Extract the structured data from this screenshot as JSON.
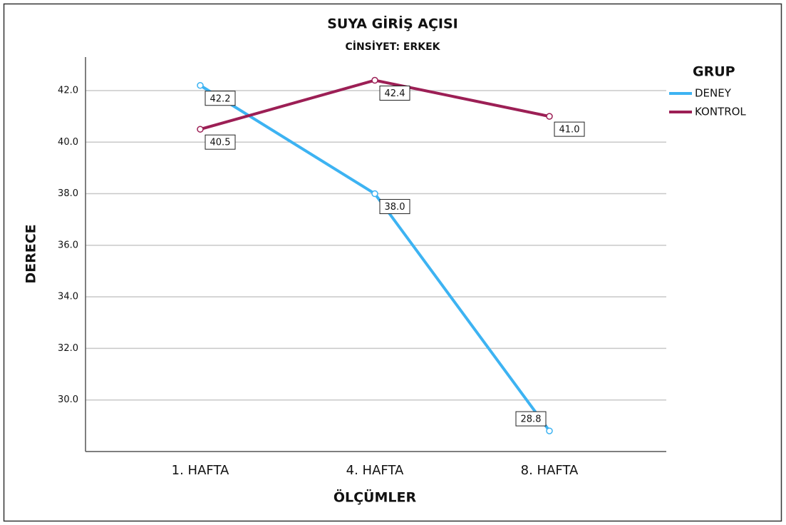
{
  "chart_data": {
    "type": "line",
    "title": "SUYA GİRİŞ AÇISI",
    "subtitle": "CİNSİYET: ERKEK",
    "x_label": "ÖLÇÜMLER",
    "y_label": "DERECE",
    "categories": [
      "1. HAFTA",
      "4. HAFTA",
      "8. HAFTA"
    ],
    "series": [
      {
        "name": "DENEY",
        "color": "#3db3f2",
        "values": [
          42.2,
          38.0,
          28.8
        ],
        "value_labels": [
          "42.2",
          "38.0",
          "28.8"
        ]
      },
      {
        "name": "KONTROL",
        "color": "#9c1f55",
        "values": [
          40.5,
          42.4,
          41.0
        ],
        "value_labels": [
          "40.5",
          "42.4",
          "41.0"
        ]
      }
    ],
    "ylim": [
      28.0,
      43.3
    ],
    "yticks": [
      {
        "value": 30,
        "label": "30.0"
      },
      {
        "value": 32,
        "label": "32.0"
      },
      {
        "value": 34,
        "label": "34.0"
      },
      {
        "value": 36,
        "label": "36.0"
      },
      {
        "value": 38,
        "label": "38.0"
      },
      {
        "value": 40,
        "label": "40.0"
      },
      {
        "value": 42,
        "label": "42.0"
      }
    ],
    "grid": true,
    "legend_title": "GRUP",
    "legend_position": "right"
  }
}
